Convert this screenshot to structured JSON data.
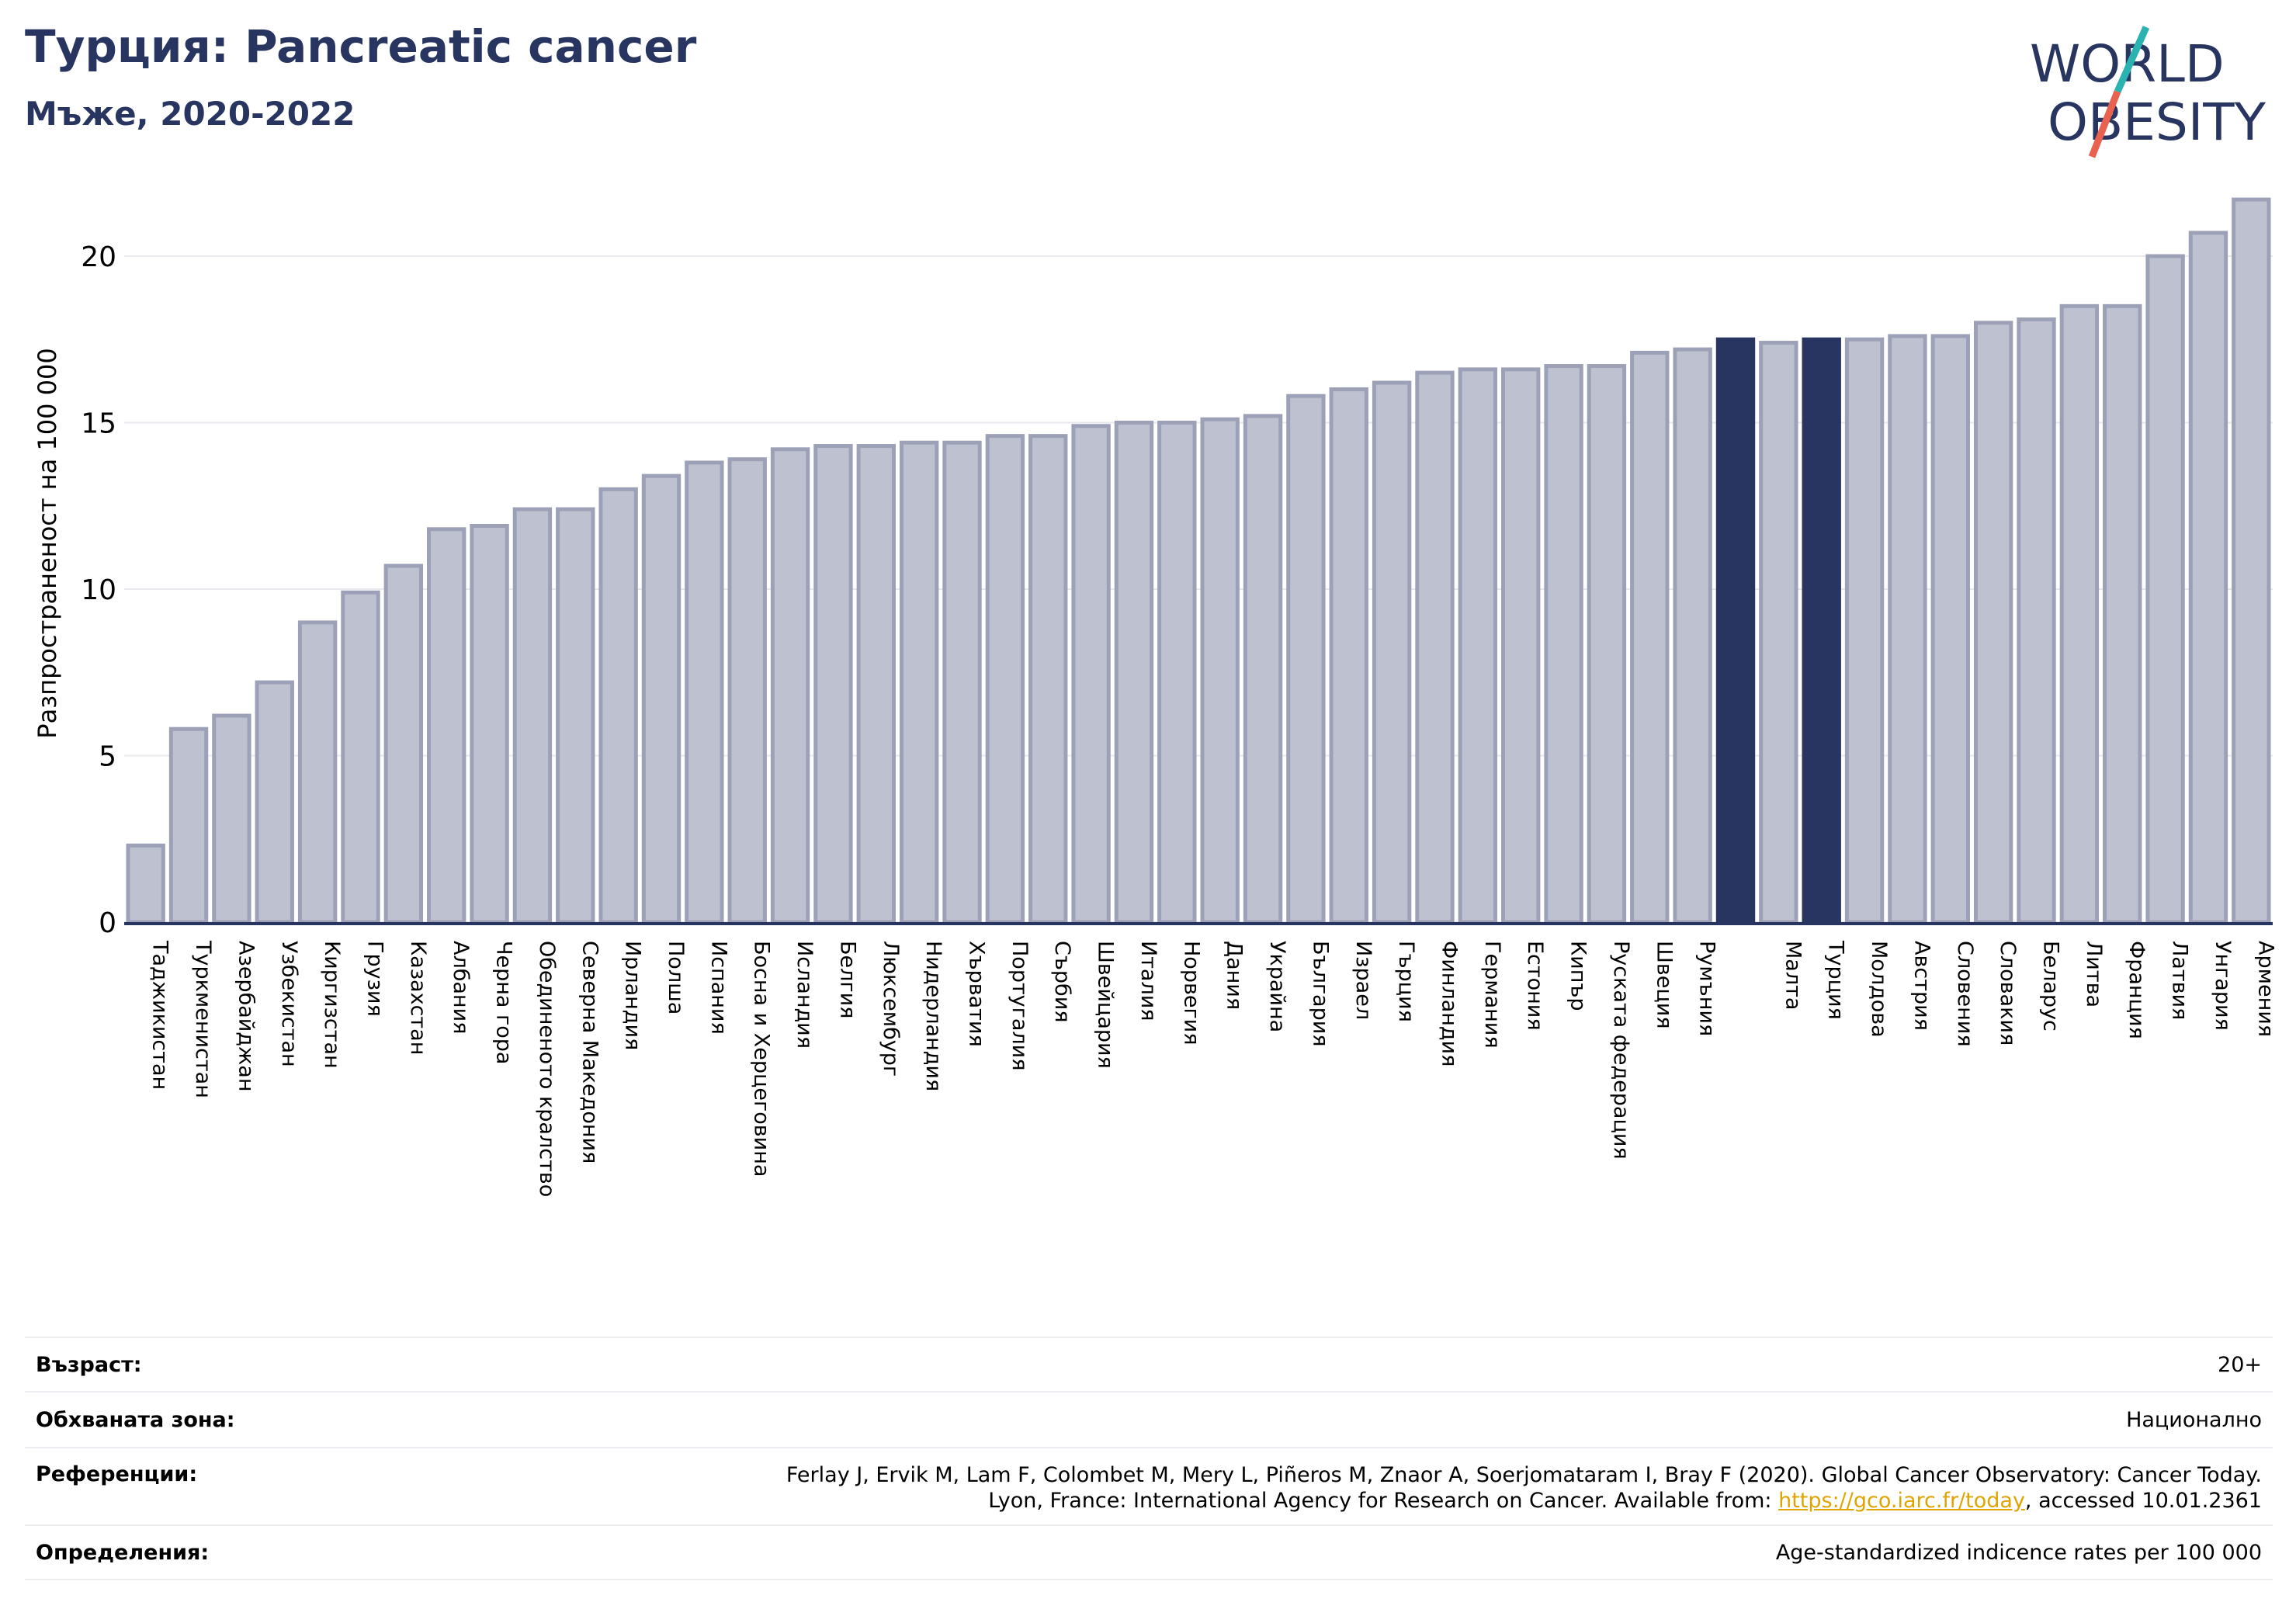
{
  "header": {
    "title": "Турция: Pancreatic cancer",
    "subtitle": "Мъже, 2020-2022"
  },
  "logo": {
    "line1": "WORLD",
    "line2": "OBESITY"
  },
  "chart_data": {
    "type": "bar",
    "ylabel": "Разпространеност  на 100 000",
    "ylim": [
      0,
      22
    ],
    "yticks": [
      0,
      5,
      10,
      15,
      20
    ],
    "grid": true,
    "categories": [
      "Таджикистан",
      "Туркменистан",
      "Азербайджан",
      "Узбекистан",
      "Киргизстан",
      "Грузия",
      "Казахстан",
      "Албания",
      "Черна гора",
      "Обединеното кралство",
      "Северна Македония",
      "Ирландия",
      "Полша",
      "Испания",
      "Босна и Херцеговина",
      "Исландия",
      "Белгия",
      "Люксембург",
      "Нидерландия",
      "Хърватия",
      "Португалия",
      "Сърбия",
      "Швейцария",
      "Италия",
      "Норвегия",
      "Дания",
      "Украйна",
      "България",
      "Израел",
      "Гърция",
      "Финландия",
      "Германия",
      "Естония",
      "Кипър",
      "Руската федерация",
      "Швеция",
      "Румъния",
      "",
      "Малта",
      "Турция",
      "Молдова",
      "Австрия",
      "Словения",
      "Словакия",
      "Беларус",
      "Литва",
      "Франция",
      "Латвия",
      "Унгария",
      "Армения"
    ],
    "values": [
      2.3,
      5.8,
      6.2,
      7.2,
      9.0,
      9.9,
      10.7,
      11.8,
      11.9,
      12.4,
      12.4,
      13.0,
      13.4,
      13.8,
      13.9,
      14.2,
      14.3,
      14.3,
      14.4,
      14.4,
      14.6,
      14.6,
      14.9,
      15.0,
      15.0,
      15.1,
      15.2,
      15.8,
      16.0,
      16.2,
      16.5,
      16.6,
      16.6,
      16.7,
      16.7,
      17.1,
      17.2,
      17.5,
      17.4,
      17.5,
      17.5,
      17.6,
      17.6,
      18.0,
      18.1,
      18.5,
      18.5,
      20.0,
      20.7,
      21.7
    ],
    "highlight_indices": [
      37,
      39
    ],
    "colors": {
      "bar": "#bec1cf",
      "bar_edge": "#9da1b8",
      "highlight": "#283561",
      "grid": "#e8e8ee",
      "axis": "#283561"
    }
  },
  "info": {
    "age_label": "Възраст:",
    "age_value": "20+",
    "area_label": "Обхваната зона:",
    "area_value": "Национално",
    "ref_label": "Референции:",
    "ref_line1": "Ferlay J, Ervik M, Lam F, Colombet M, Mery L, Piñeros M, Znaor A, Soerjomataram I, Bray F (2020). Global Cancer Observatory: Cancer Today.",
    "ref_line2_prefix": "Lyon, France: International Agency for Research on Cancer. Available from: ",
    "ref_link": "https://gco.iarc.fr/today",
    "ref_line2_suffix": ", accessed 10.01.2361",
    "def_label": "Определения:",
    "def_value": "Age-standardized indicence rates per 100 000"
  }
}
